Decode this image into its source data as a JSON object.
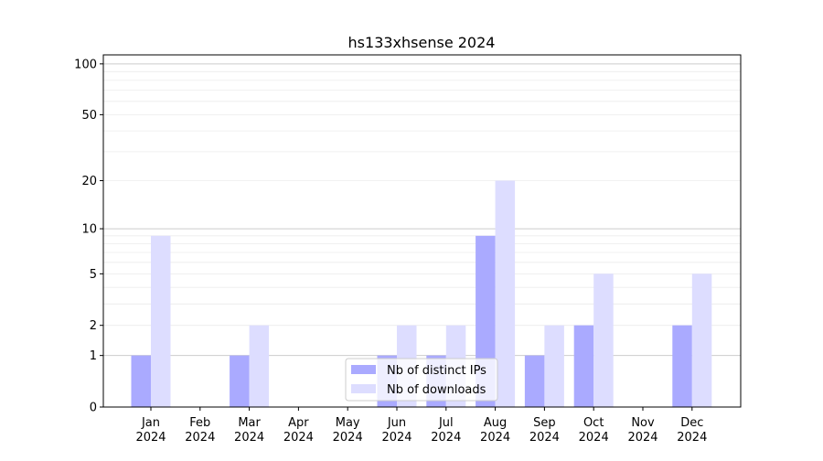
{
  "chart_data": {
    "type": "bar",
    "title": "hs133xhsense 2024",
    "xlabel": "",
    "ylabel": "",
    "yscale": "log(1+y)",
    "ylim": [
      0,
      113
    ],
    "grid": true,
    "legend_placement": "bottom-center",
    "categories": [
      "Jan\n2024",
      "Feb\n2024",
      "Mar\n2024",
      "Apr\n2024",
      "May\n2024",
      "Jun\n2024",
      "Jul\n2024",
      "Aug\n2024",
      "Sep\n2024",
      "Oct\n2024",
      "Nov\n2024",
      "Dec\n2024"
    ],
    "yticks": [
      0,
      1,
      2,
      5,
      10,
      20,
      50,
      100
    ],
    "series": [
      {
        "name": "Nb of distinct IPs",
        "color": "#aaaaff",
        "values": [
          1,
          0,
          1,
          0,
          0,
          1,
          1,
          9,
          1,
          2,
          0,
          2
        ]
      },
      {
        "name": "Nb of downloads",
        "color": "#ddddff",
        "values": [
          9,
          0,
          2,
          0,
          0,
          2,
          2,
          20,
          2,
          5,
          0,
          5
        ]
      }
    ]
  }
}
